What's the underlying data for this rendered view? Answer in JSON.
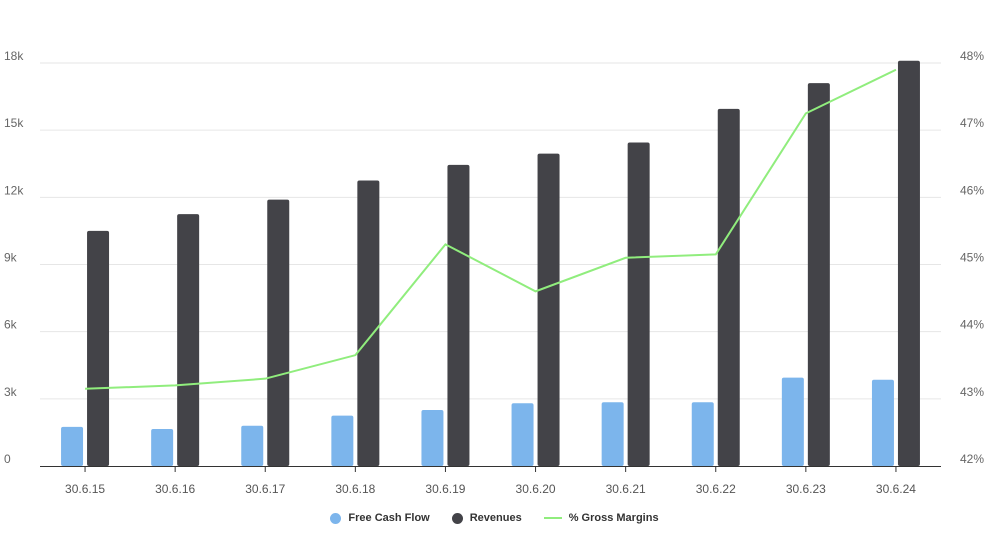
{
  "chart_data": {
    "type": "bar",
    "categories": [
      "30.6.15",
      "30.6.16",
      "30.6.17",
      "30.6.18",
      "30.6.19",
      "30.6.20",
      "30.6.21",
      "30.6.22",
      "30.6.23",
      "30.6.24"
    ],
    "series": [
      {
        "name": "Free Cash Flow",
        "type": "bar",
        "axis": "left",
        "color": "#7cb5ec",
        "values": [
          1750,
          1650,
          1800,
          2250,
          2500,
          2800,
          2850,
          2850,
          3950,
          3850
        ]
      },
      {
        "name": "Revenues",
        "type": "bar",
        "axis": "left",
        "color": "#434348",
        "values": [
          10500,
          11250,
          11900,
          12750,
          13450,
          13950,
          14450,
          15950,
          17100,
          18100
        ]
      },
      {
        "name": "% Gross Margins",
        "type": "line",
        "axis": "right",
        "color": "#90ed7d",
        "values": [
          43.15,
          43.2,
          43.3,
          43.65,
          45.3,
          44.6,
          45.1,
          45.15,
          47.25,
          47.9
        ]
      }
    ],
    "left_axis": {
      "ticks": [
        "0",
        "3k",
        "6k",
        "9k",
        "12k",
        "15k",
        "18k"
      ],
      "ylim": [
        0,
        18000
      ]
    },
    "right_axis": {
      "ticks": [
        "42%",
        "43%",
        "44%",
        "45%",
        "46%",
        "47%",
        "48%"
      ],
      "ylim": [
        42,
        48
      ]
    },
    "grid": true,
    "legend_position": "bottom-center"
  }
}
